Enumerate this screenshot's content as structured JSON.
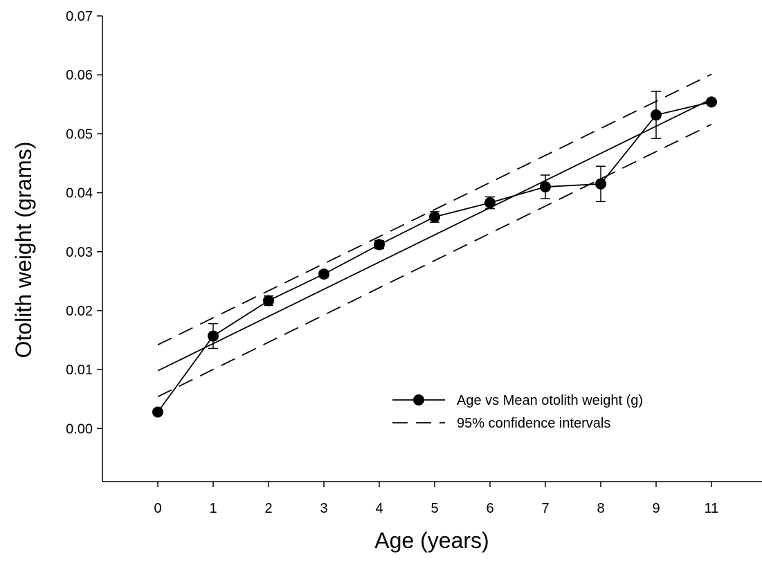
{
  "chart_data": {
    "type": "line",
    "xlabel": "Age (years)",
    "ylabel": "Otolith weight (grams)",
    "x_categories": [
      "0",
      "1",
      "2",
      "3",
      "4",
      "5",
      "6",
      "7",
      "8",
      "9",
      "11"
    ],
    "y_ticks": [
      "0.00",
      "0.01",
      "0.02",
      "0.03",
      "0.04",
      "0.05",
      "0.06",
      "0.07"
    ],
    "ylim": [
      -0.009,
      0.07
    ],
    "grid": false,
    "legend_position": "bottom-right",
    "series": [
      {
        "name": "Age vs Mean otolith weight (g)",
        "style": "solid-line-with-circle-markers",
        "color": "#000000",
        "points": [
          {
            "x": "0",
            "y": 0.0028,
            "err_low": 0.0026,
            "err_high": 0.003
          },
          {
            "x": "1",
            "y": 0.0157,
            "err_low": 0.0136,
            "err_high": 0.0178
          },
          {
            "x": "2",
            "y": 0.0217,
            "err_low": 0.0209,
            "err_high": 0.0225
          },
          {
            "x": "3",
            "y": 0.0262,
            "err_low": 0.0257,
            "err_high": 0.0267
          },
          {
            "x": "4",
            "y": 0.0312,
            "err_low": 0.0305,
            "err_high": 0.0319
          },
          {
            "x": "5",
            "y": 0.0359,
            "err_low": 0.035,
            "err_high": 0.0368
          },
          {
            "x": "6",
            "y": 0.0383,
            "err_low": 0.0373,
            "err_high": 0.0393
          },
          {
            "x": "7",
            "y": 0.041,
            "err_low": 0.039,
            "err_high": 0.043
          },
          {
            "x": "8",
            "y": 0.0415,
            "err_low": 0.0385,
            "err_high": 0.0445
          },
          {
            "x": "9",
            "y": 0.0532,
            "err_low": 0.0492,
            "err_high": 0.0572
          },
          {
            "x": "11",
            "y": 0.0554,
            "err_low": 0.0551,
            "err_high": 0.0557
          }
        ]
      },
      {
        "name": "95% confidence intervals",
        "style": "dashed",
        "color": "#000000",
        "lines": [
          {
            "from": {
              "x": "0",
              "y": 0.0142
            },
            "to": {
              "x": "11",
              "y": 0.0601
            }
          },
          {
            "from": {
              "x": "0",
              "y": 0.0054
            },
            "to": {
              "x": "11",
              "y": 0.0516
            }
          }
        ]
      }
    ],
    "regression_line": {
      "style": "solid",
      "color": "#000000",
      "from": {
        "x": "0",
        "y": 0.0098
      },
      "to": {
        "x": "11",
        "y": 0.0559
      }
    }
  }
}
